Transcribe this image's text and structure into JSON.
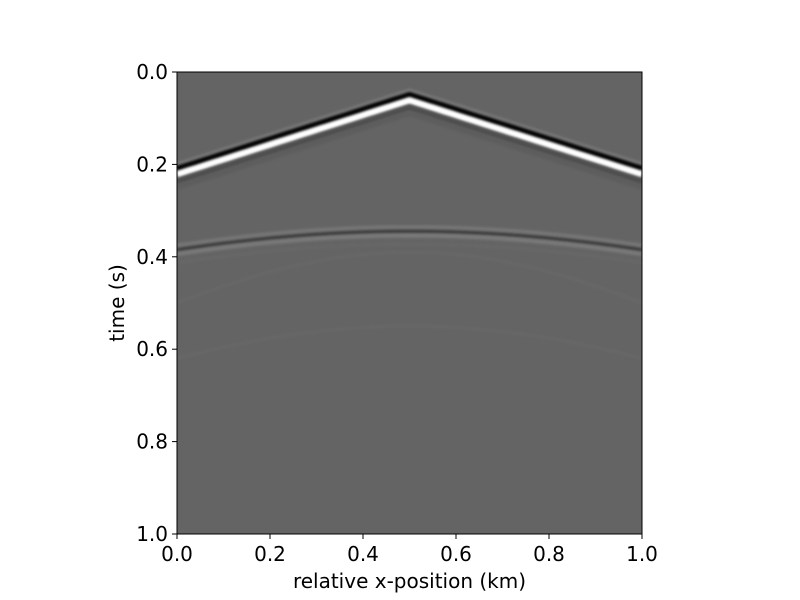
{
  "chart_data": {
    "type": "heatmap",
    "title": "",
    "xlabel": "relative x-position (km)",
    "ylabel": "time (s)",
    "xlim": [
      0.0,
      1.0
    ],
    "ylim": [
      1.0,
      0.0
    ],
    "y_inverted": true,
    "x_ticks": [
      "0.0",
      "0.2",
      "0.4",
      "0.6",
      "0.8",
      "1.0"
    ],
    "y_ticks": [
      "0.0",
      "0.2",
      "0.4",
      "0.6",
      "0.8",
      "1.0"
    ],
    "colormap": "gray",
    "background_color": "#646464",
    "grid": false,
    "legend": "none",
    "events": [
      {
        "kind": "direct-wave",
        "apex_x": 0.5,
        "apex_time": 0.05,
        "edge_time": 0.21,
        "polarity": "black-then-white",
        "strength": "strong"
      },
      {
        "kind": "reflection",
        "apex_x": 0.5,
        "apex_time": 0.345,
        "edge_time": 0.385,
        "polarity": "light-dark-light",
        "strength": "weak"
      }
    ]
  }
}
